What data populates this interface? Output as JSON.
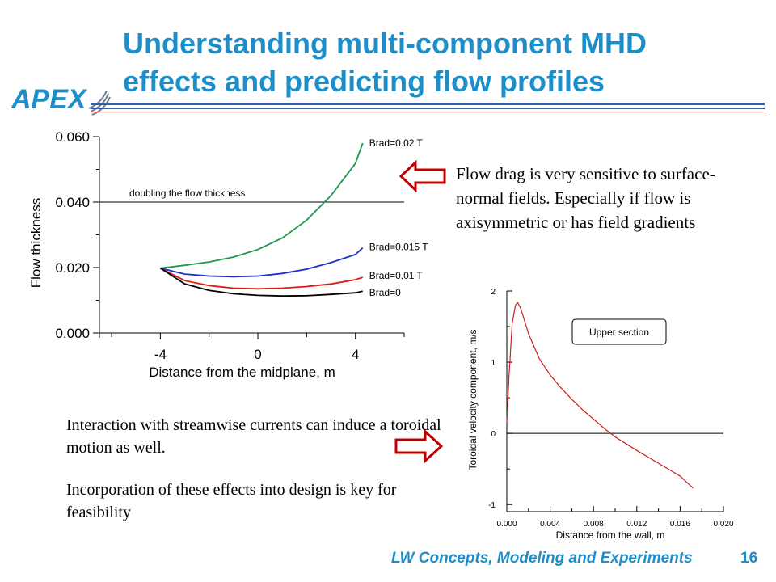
{
  "slide": {
    "title_line1": "Understanding multi-component MHD",
    "title_line2": "effects and predicting flow profiles",
    "logo_text": "APEX",
    "footer": "LW Concepts, Modeling and Experiments",
    "page_number": "16"
  },
  "notes": {
    "flow_drag": "Flow drag is very sensitive to surface- normal fields. Especially if flow is axisymmetric or has field gradients",
    "interaction": "Interaction with streamwise currents can induce a toroidal motion as well.",
    "incorporation": "Incorporation of these effects into design is key for feasibility"
  },
  "colors": {
    "title": "#1c8ec9",
    "arrow": "#c00000"
  },
  "chart_data": [
    {
      "type": "line",
      "xlabel": "Distance from the midplane, m",
      "ylabel": "Flow thickness",
      "xlim": [
        -6.5,
        6
      ],
      "ylim": [
        0,
        0.06
      ],
      "x_ticks": [
        "-4",
        "0",
        "4"
      ],
      "y_ticks": [
        "0.000",
        "0.020",
        "0.040",
        "0.060"
      ],
      "reference_line": {
        "y": 0.04,
        "label": "doubling the flow thickness"
      },
      "series": [
        {
          "name": "Brad=0.02 T",
          "color": "#1a9a4a",
          "points": [
            [
              -4,
              0.0198
            ],
            [
              -3,
              0.0207
            ],
            [
              -2,
              0.0217
            ],
            [
              -1,
              0.0232
            ],
            [
              0,
              0.0255
            ],
            [
              1,
              0.029
            ],
            [
              2,
              0.0345
            ],
            [
              3,
              0.042
            ],
            [
              4,
              0.0518
            ],
            [
              4.3,
              0.058
            ]
          ]
        },
        {
          "name": "Brad=0.015 T",
          "color": "#1a2fcc",
          "points": [
            [
              -4,
              0.0198
            ],
            [
              -3,
              0.018
            ],
            [
              -2,
              0.0174
            ],
            [
              -1,
              0.0172
            ],
            [
              0,
              0.0174
            ],
            [
              1,
              0.0182
            ],
            [
              2,
              0.0195
            ],
            [
              3,
              0.0215
            ],
            [
              4,
              0.024
            ],
            [
              4.3,
              0.026
            ]
          ]
        },
        {
          "name": "Brad=0.01 T",
          "color": "#dd1a1a",
          "points": [
            [
              -4,
              0.0198
            ],
            [
              -3,
              0.016
            ],
            [
              -2,
              0.0145
            ],
            [
              -1,
              0.0137
            ],
            [
              0,
              0.0135
            ],
            [
              1,
              0.0137
            ],
            [
              2,
              0.0142
            ],
            [
              3,
              0.015
            ],
            [
              4,
              0.0163
            ],
            [
              4.3,
              0.017
            ]
          ]
        },
        {
          "name": "Brad=0",
          "color": "#000000",
          "points": [
            [
              -4,
              0.0198
            ],
            [
              -3,
              0.015
            ],
            [
              -2,
              0.013
            ],
            [
              -1,
              0.012
            ],
            [
              0,
              0.0115
            ],
            [
              1,
              0.0113
            ],
            [
              2,
              0.0114
            ],
            [
              3,
              0.0118
            ],
            [
              4,
              0.0123
            ],
            [
              4.3,
              0.0128
            ]
          ]
        }
      ]
    },
    {
      "type": "line",
      "xlabel": "Distance from the wall, m",
      "ylabel": "Toroidal velocity component, m/s",
      "xlim": [
        0,
        0.02
      ],
      "ylim": [
        -1.1,
        2
      ],
      "x_ticks": [
        "0.000",
        "0.004",
        "0.008",
        "0.012",
        "0.016",
        "0.020"
      ],
      "y_ticks": [
        "-1",
        "0",
        "1",
        "2"
      ],
      "legend_box": "Upper section",
      "series": [
        {
          "name": "",
          "color": "#cc1f1f",
          "points": [
            [
              0,
              0.15
            ],
            [
              0.0002,
              0.8
            ],
            [
              0.0005,
              1.55
            ],
            [
              0.0008,
              1.8
            ],
            [
              0.001,
              1.84
            ],
            [
              0.0013,
              1.75
            ],
            [
              0.002,
              1.4
            ],
            [
              0.003,
              1.05
            ],
            [
              0.004,
              0.82
            ],
            [
              0.005,
              0.64
            ],
            [
              0.006,
              0.48
            ],
            [
              0.007,
              0.33
            ],
            [
              0.008,
              0.2
            ],
            [
              0.009,
              0.07
            ],
            [
              0.01,
              -0.05
            ],
            [
              0.012,
              -0.24
            ],
            [
              0.014,
              -0.42
            ],
            [
              0.016,
              -0.6
            ],
            [
              0.0172,
              -0.77
            ]
          ]
        }
      ]
    }
  ]
}
